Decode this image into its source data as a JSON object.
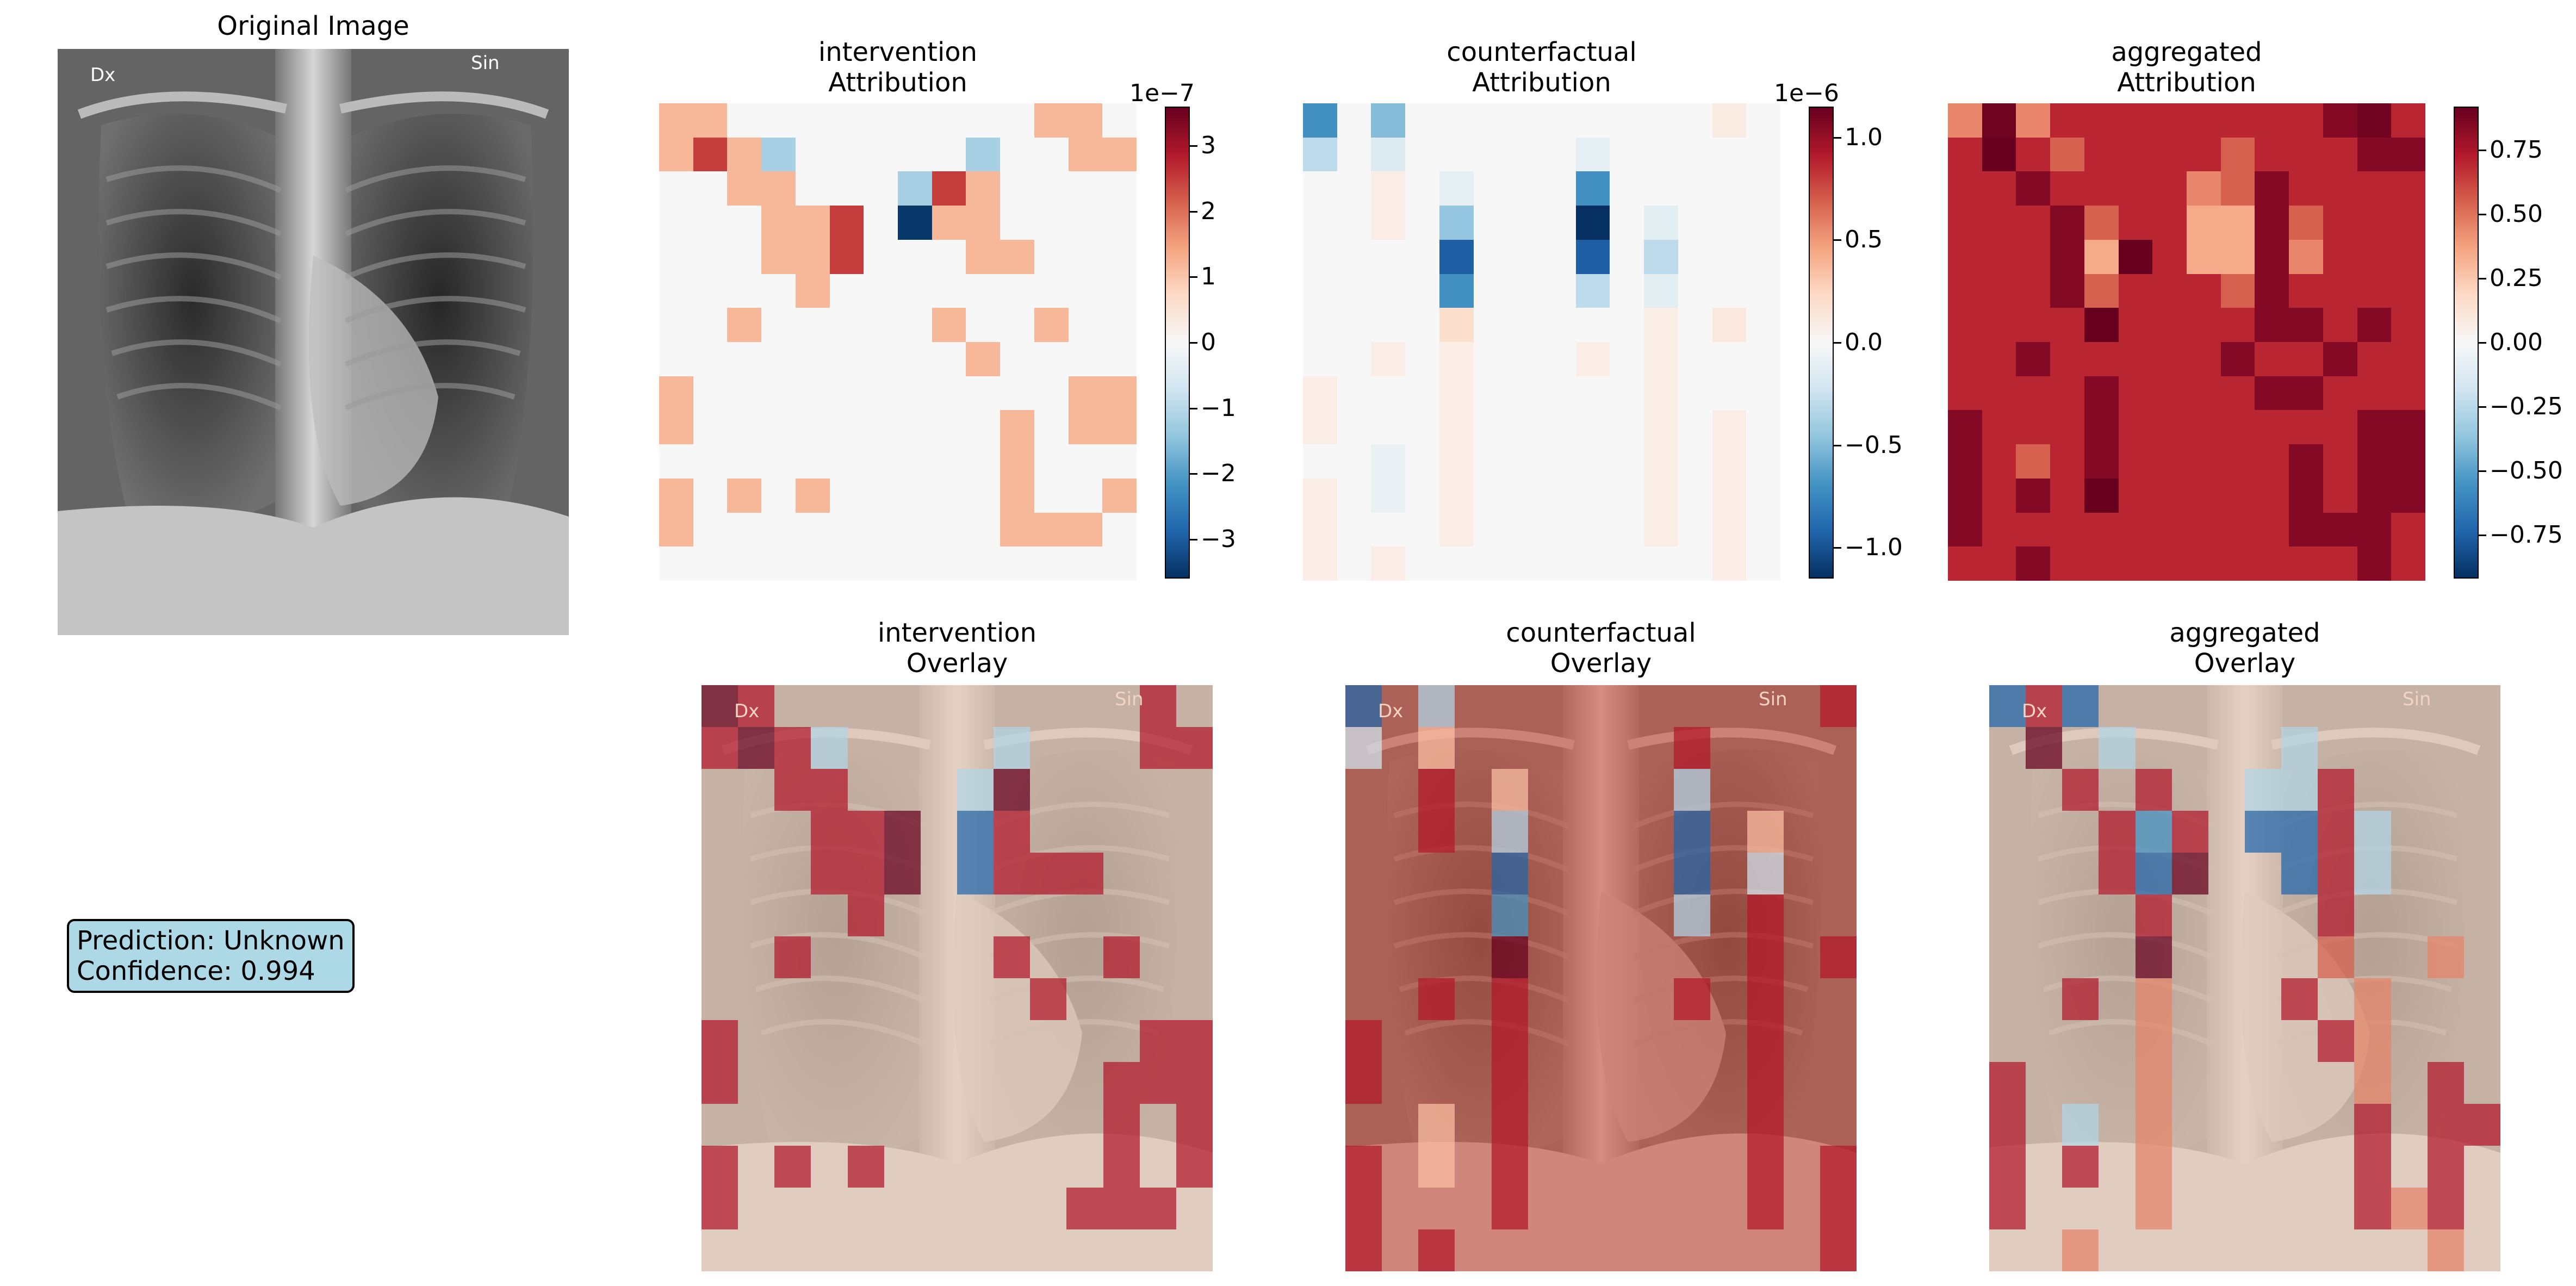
{
  "original": {
    "title": "Original Image",
    "marker_left": "Dx",
    "marker_right": "Sin"
  },
  "prediction": {
    "line1": "Prediction: Unknown",
    "line2": "Confidence: 0.994"
  },
  "colormap": "RdBu_r",
  "chart_data": [
    {
      "type": "heatmap",
      "title": "intervention\nAttribution",
      "grid": "14x14",
      "scale_exponent": "1e−7",
      "vmin": -3.6,
      "vmax": 3.6,
      "colorbar_ticks": [
        "−3",
        "−2",
        "−1",
        "0",
        "1",
        "2",
        "3"
      ],
      "values": [
        [
          1.2,
          1.2,
          0,
          0,
          0,
          0,
          0,
          0,
          0,
          0,
          0,
          1.2,
          1.2,
          0
        ],
        [
          1.2,
          2.5,
          1.2,
          -1.2,
          0,
          0,
          0,
          0,
          0,
          -1.2,
          0,
          0,
          1.2,
          1.2
        ],
        [
          0,
          0,
          1.2,
          1.2,
          0,
          0,
          0,
          -1.2,
          2.5,
          1.2,
          0,
          0,
          0,
          0
        ],
        [
          0,
          0,
          0,
          1.2,
          1.2,
          2.5,
          0,
          -3.5,
          1.2,
          1.2,
          0,
          0,
          0,
          0
        ],
        [
          0,
          0,
          0,
          1.2,
          1.2,
          2.5,
          0,
          0,
          0,
          1.2,
          1.2,
          0,
          0,
          0
        ],
        [
          0,
          0,
          0,
          0,
          1.2,
          0,
          0,
          0,
          0,
          0,
          0,
          0,
          0,
          0
        ],
        [
          0,
          0,
          1.2,
          0,
          0,
          0,
          0,
          0,
          1.2,
          0,
          0,
          1.2,
          0,
          0
        ],
        [
          0,
          0,
          0,
          0,
          0,
          0,
          0,
          0,
          0,
          1.2,
          0,
          0,
          0,
          0
        ],
        [
          1.2,
          0,
          0,
          0,
          0,
          0,
          0,
          0,
          0,
          0,
          0,
          0,
          1.2,
          1.2
        ],
        [
          1.2,
          0,
          0,
          0,
          0,
          0,
          0,
          0,
          0,
          0,
          1.2,
          0,
          1.2,
          1.2
        ],
        [
          0,
          0,
          0,
          0,
          0,
          0,
          0,
          0,
          0,
          0,
          1.2,
          0,
          0,
          0
        ],
        [
          1.2,
          0,
          1.2,
          0,
          1.2,
          0,
          0,
          0,
          0,
          0,
          1.2,
          0,
          0,
          1.2
        ],
        [
          1.2,
          0,
          0,
          0,
          0,
          0,
          0,
          0,
          0,
          0,
          1.2,
          1.2,
          1.2,
          0
        ],
        [
          0,
          0,
          0,
          0,
          0,
          0,
          0,
          0,
          0,
          0,
          0,
          0,
          0,
          0
        ]
      ]
    },
    {
      "type": "heatmap",
      "title": "counterfactual\nAttribution",
      "grid": "14x14",
      "scale_exponent": "1e−6",
      "vmin": -1.15,
      "vmax": 1.15,
      "colorbar_ticks": [
        "−1.0",
        "−0.5",
        "0.0",
        "0.5",
        "1.0"
      ],
      "values": [
        [
          -0.7,
          0,
          -0.5,
          0,
          0,
          0,
          0,
          0,
          0,
          0,
          0,
          0,
          0.1,
          0
        ],
        [
          -0.3,
          0,
          -0.15,
          0,
          0,
          0,
          0,
          0,
          -0.1,
          0,
          0,
          0,
          0,
          0
        ],
        [
          0,
          0,
          0.08,
          0,
          -0.1,
          0,
          0,
          0,
          -0.7,
          0,
          0,
          0,
          0,
          0
        ],
        [
          0,
          0,
          0.08,
          0,
          -0.45,
          0,
          0,
          0,
          -1.15,
          0,
          -0.12,
          0,
          0,
          0
        ],
        [
          0,
          0,
          0,
          0,
          -0.95,
          0,
          0,
          0,
          -0.95,
          0,
          -0.3,
          0,
          0,
          0
        ],
        [
          0,
          0,
          0,
          0,
          -0.7,
          0,
          0,
          0,
          -0.3,
          0,
          -0.12,
          0,
          0,
          0
        ],
        [
          0,
          0,
          0,
          0,
          0.2,
          0,
          0,
          0,
          0,
          0,
          0.08,
          0,
          0.12,
          0
        ],
        [
          0,
          0,
          0.08,
          0,
          0.08,
          0,
          0,
          0,
          0.08,
          0,
          0.08,
          0,
          0,
          0
        ],
        [
          0.08,
          0,
          0,
          0,
          0.08,
          0,
          0,
          0,
          0,
          0,
          0.08,
          0,
          0,
          0
        ],
        [
          0.08,
          0,
          0,
          0,
          0.08,
          0,
          0,
          0,
          0,
          0,
          0.08,
          0,
          0.08,
          0
        ],
        [
          0,
          0,
          -0.08,
          0,
          0.08,
          0,
          0,
          0,
          0,
          0,
          0.08,
          0,
          0.08,
          0
        ],
        [
          0.08,
          0,
          -0.08,
          0,
          0.08,
          0,
          0,
          0,
          0,
          0,
          0.08,
          0,
          0.08,
          0
        ],
        [
          0.08,
          0,
          0,
          0,
          0.08,
          0,
          0,
          0,
          0,
          0,
          0.08,
          0,
          0.08,
          0
        ],
        [
          0.08,
          0,
          0.08,
          0,
          0,
          0,
          0,
          0,
          0,
          0,
          0,
          0,
          0.08,
          0
        ]
      ]
    },
    {
      "type": "heatmap",
      "title": "aggregated\nAttribution",
      "grid": "14x14",
      "scale_exponent": "",
      "vmin": -0.92,
      "vmax": 0.92,
      "colorbar_ticks": [
        "−0.75",
        "−0.50",
        "−0.25",
        "0.00",
        "0.25",
        "0.50",
        "0.75"
      ],
      "values": [
        [
          0.45,
          0.9,
          0.45,
          0.7,
          0.7,
          0.7,
          0.7,
          0.7,
          0.7,
          0.7,
          0.7,
          0.85,
          0.9,
          0.7
        ],
        [
          0.7,
          0.92,
          0.7,
          0.55,
          0.7,
          0.7,
          0.7,
          0.7,
          0.55,
          0.7,
          0.7,
          0.7,
          0.85,
          0.85
        ],
        [
          0.7,
          0.7,
          0.85,
          0.7,
          0.7,
          0.7,
          0.7,
          0.45,
          0.55,
          0.85,
          0.7,
          0.7,
          0.7,
          0.7
        ],
        [
          0.7,
          0.7,
          0.7,
          0.85,
          0.55,
          0.7,
          0.7,
          0.35,
          0.35,
          0.85,
          0.55,
          0.7,
          0.7,
          0.7
        ],
        [
          0.7,
          0.7,
          0.7,
          0.85,
          0.35,
          0.92,
          0.7,
          0.35,
          0.35,
          0.85,
          0.45,
          0.7,
          0.7,
          0.7
        ],
        [
          0.7,
          0.7,
          0.7,
          0.85,
          0.55,
          0.7,
          0.7,
          0.7,
          0.55,
          0.85,
          0.7,
          0.7,
          0.7,
          0.7
        ],
        [
          0.7,
          0.7,
          0.7,
          0.7,
          0.92,
          0.7,
          0.7,
          0.7,
          0.7,
          0.85,
          0.85,
          0.7,
          0.85,
          0.7
        ],
        [
          0.7,
          0.7,
          0.85,
          0.7,
          0.7,
          0.7,
          0.7,
          0.7,
          0.85,
          0.7,
          0.7,
          0.85,
          0.7,
          0.7
        ],
        [
          0.7,
          0.7,
          0.7,
          0.7,
          0.85,
          0.7,
          0.7,
          0.7,
          0.7,
          0.85,
          0.85,
          0.7,
          0.7,
          0.7
        ],
        [
          0.85,
          0.7,
          0.7,
          0.7,
          0.85,
          0.7,
          0.7,
          0.7,
          0.7,
          0.7,
          0.7,
          0.7,
          0.85,
          0.85
        ],
        [
          0.85,
          0.7,
          0.55,
          0.7,
          0.85,
          0.7,
          0.7,
          0.7,
          0.7,
          0.7,
          0.85,
          0.7,
          0.85,
          0.85
        ],
        [
          0.85,
          0.7,
          0.85,
          0.7,
          0.92,
          0.7,
          0.7,
          0.7,
          0.7,
          0.7,
          0.85,
          0.7,
          0.85,
          0.85
        ],
        [
          0.85,
          0.7,
          0.7,
          0.7,
          0.7,
          0.7,
          0.7,
          0.7,
          0.7,
          0.7,
          0.85,
          0.85,
          0.85,
          0.7
        ],
        [
          0.7,
          0.7,
          0.85,
          0.7,
          0.7,
          0.7,
          0.7,
          0.7,
          0.7,
          0.7,
          0.7,
          0.7,
          0.85,
          0.7
        ]
      ]
    }
  ],
  "overlays": [
    {
      "title": "intervention\nOverlay",
      "background_tint": "none",
      "values": [
        [
          1,
          0.8,
          0,
          0,
          0,
          0,
          0,
          0,
          0,
          0,
          0,
          0,
          0.8,
          0
        ],
        [
          0.8,
          1,
          0.8,
          -0.3,
          0,
          0,
          0,
          0,
          -0.3,
          0,
          0,
          0,
          0.8,
          0.8
        ],
        [
          0,
          0,
          0.8,
          0.8,
          0,
          0,
          0,
          -0.3,
          1,
          0,
          0,
          0,
          0,
          0
        ],
        [
          0,
          0,
          0,
          0.8,
          0.8,
          1,
          0,
          -0.8,
          0.8,
          0,
          0,
          0,
          0,
          0
        ],
        [
          0,
          0,
          0,
          0.8,
          0.8,
          1,
          0,
          -0.8,
          0.8,
          0.8,
          0.8,
          0,
          0,
          0
        ],
        [
          0,
          0,
          0,
          0,
          0.8,
          0,
          0,
          0,
          0,
          0,
          0,
          0,
          0,
          0
        ],
        [
          0,
          0,
          0.8,
          0,
          0,
          0,
          0,
          0,
          0.8,
          0,
          0,
          0.8,
          0,
          0
        ],
        [
          0,
          0,
          0,
          0,
          0,
          0,
          0,
          0,
          0,
          0.8,
          0,
          0,
          0,
          0
        ],
        [
          0.8,
          0,
          0,
          0,
          0,
          0,
          0,
          0,
          0,
          0,
          0,
          0,
          0.8,
          0.8
        ],
        [
          0.8,
          0,
          0,
          0,
          0,
          0,
          0,
          0,
          0,
          0,
          0,
          0.8,
          0.8,
          0.8
        ],
        [
          0,
          0,
          0,
          0,
          0,
          0,
          0,
          0,
          0,
          0,
          0,
          0.8,
          0,
          0.8
        ],
        [
          0.8,
          0,
          0.8,
          0,
          0.8,
          0,
          0,
          0,
          0,
          0,
          0,
          0.8,
          0,
          0.8
        ],
        [
          0.8,
          0,
          0,
          0,
          0,
          0,
          0,
          0,
          0,
          0,
          0.8,
          0.8,
          0.8,
          0
        ],
        [
          0,
          0,
          0,
          0,
          0,
          0,
          0,
          0,
          0,
          0,
          0,
          0,
          0,
          0
        ]
      ]
    },
    {
      "title": "counterfactual\nOverlay",
      "background_tint": "red",
      "values": [
        [
          -0.8,
          0,
          -0.3,
          0,
          0,
          0,
          0,
          0,
          0,
          0,
          0,
          0,
          0,
          0.8
        ],
        [
          -0.2,
          0,
          0.3,
          0,
          0,
          0,
          0,
          0,
          0,
          0.8,
          0,
          0,
          0,
          0
        ],
        [
          0,
          0,
          0.8,
          0,
          0.3,
          0,
          0,
          0,
          0,
          -0.3,
          0,
          0,
          0,
          0
        ],
        [
          0,
          0,
          0.8,
          0,
          -0.3,
          0,
          0,
          0,
          0,
          -0.8,
          0,
          0.3,
          0,
          0
        ],
        [
          0,
          0,
          0,
          0,
          -0.8,
          0,
          0,
          0,
          0,
          -0.8,
          0,
          -0.2,
          0,
          0
        ],
        [
          0,
          0,
          0,
          0,
          -0.6,
          0,
          0,
          0,
          0,
          -0.3,
          0,
          0.8,
          0,
          0
        ],
        [
          0,
          0,
          0,
          0,
          1,
          0,
          0,
          0,
          0,
          0,
          0,
          0.8,
          0,
          0.8
        ],
        [
          0,
          0,
          0.8,
          0,
          0.8,
          0,
          0,
          0,
          0,
          0.8,
          0,
          0.8,
          0,
          0
        ],
        [
          0.8,
          0,
          0,
          0,
          0.8,
          0,
          0,
          0,
          0,
          0,
          0,
          0.8,
          0,
          0
        ],
        [
          0.8,
          0,
          0,
          0,
          0.8,
          0,
          0,
          0,
          0,
          0,
          0,
          0.8,
          0,
          0
        ],
        [
          0,
          0,
          0.3,
          0,
          0.8,
          0,
          0,
          0,
          0,
          0,
          0,
          0.8,
          0,
          0
        ],
        [
          0.8,
          0,
          0.3,
          0,
          0.8,
          0,
          0,
          0,
          0,
          0,
          0,
          0.8,
          0,
          0.8
        ],
        [
          0.8,
          0,
          0,
          0,
          0.8,
          0,
          0,
          0,
          0,
          0,
          0,
          0.8,
          0,
          0.8
        ],
        [
          0.8,
          0,
          0.8,
          0,
          0,
          0,
          0,
          0,
          0,
          0,
          0,
          0,
          0,
          0.8
        ]
      ]
    },
    {
      "title": "aggregated\nOverlay",
      "background_tint": "none",
      "values": [
        [
          -0.8,
          0.8,
          -0.8,
          0,
          0,
          0,
          0,
          0,
          0,
          0,
          0,
          0,
          0,
          0
        ],
        [
          0,
          1,
          0,
          -0.3,
          0,
          0,
          0,
          0,
          -0.3,
          0,
          0,
          0,
          0,
          0
        ],
        [
          0,
          0,
          0.8,
          0,
          0.8,
          0,
          0,
          -0.3,
          -0.3,
          0.8,
          0,
          0,
          0,
          0
        ],
        [
          0,
          0,
          0,
          0.8,
          -0.6,
          0.8,
          0,
          -0.8,
          -0.8,
          0.8,
          -0.3,
          0,
          0,
          0
        ],
        [
          0,
          0,
          0,
          0.8,
          -0.8,
          1,
          0,
          0,
          -0.8,
          0.8,
          -0.3,
          0,
          0,
          0
        ],
        [
          0,
          0,
          0,
          0,
          0.8,
          0,
          0,
          0,
          0,
          0.8,
          0,
          0,
          0,
          0
        ],
        [
          0,
          0,
          0,
          0,
          1,
          0,
          0,
          0,
          0,
          0.6,
          0,
          0,
          0.5,
          0
        ],
        [
          0,
          0,
          0.8,
          0,
          0.5,
          0,
          0,
          0,
          0.8,
          0,
          0.5,
          0,
          0,
          0
        ],
        [
          0,
          0,
          0,
          0,
          0.5,
          0,
          0,
          0,
          0,
          0.8,
          0.5,
          0,
          0,
          0
        ],
        [
          0.8,
          0,
          0,
          0,
          0.5,
          0,
          0,
          0,
          0,
          0,
          0.5,
          0,
          0.8,
          0
        ],
        [
          0.8,
          0,
          -0.3,
          0,
          0.5,
          0,
          0,
          0,
          0,
          0,
          0.8,
          0,
          0.8,
          0.8
        ],
        [
          0.8,
          0,
          0.8,
          0,
          0.5,
          0,
          0,
          0,
          0,
          0,
          0.8,
          0,
          0.8,
          0
        ],
        [
          0.8,
          0,
          0,
          0,
          0.5,
          0,
          0,
          0,
          0,
          0,
          0.8,
          0.5,
          0.8,
          0
        ],
        [
          0,
          0,
          0.5,
          0,
          0,
          0,
          0,
          0,
          0,
          0,
          0,
          0,
          0.5,
          0
        ]
      ]
    }
  ]
}
